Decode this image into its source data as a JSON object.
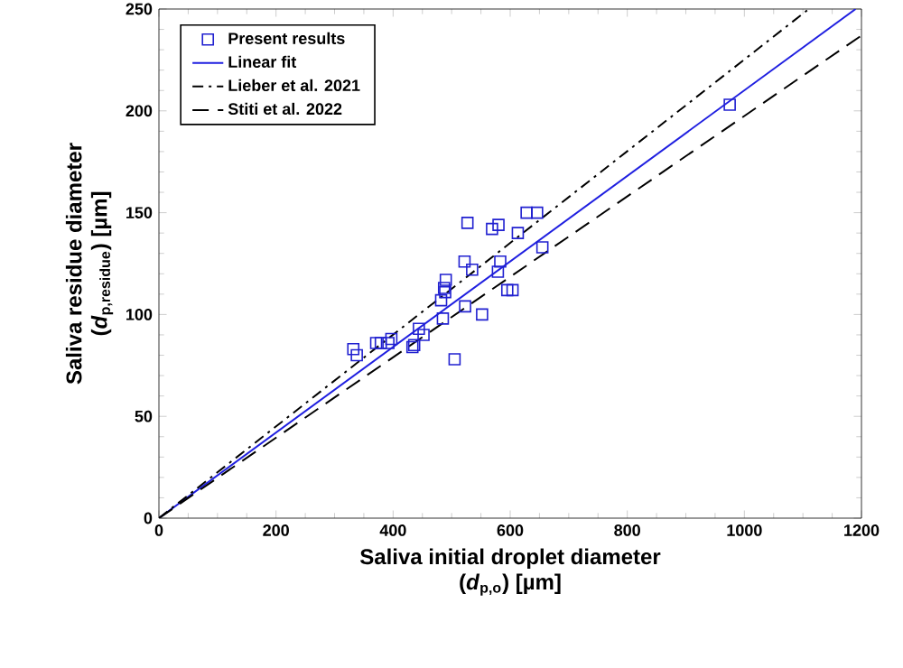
{
  "chart_data": {
    "type": "scatter",
    "xlabel": "Saliva initial droplet diameter\n(*d*$_{p,o}$) [µm]",
    "ylabel": "Saliva residue diameter\n(*d*$_{p,residue}$) [µm]",
    "xlim": [
      0,
      1200
    ],
    "ylim": [
      0,
      250
    ],
    "xticks": [
      0,
      200,
      400,
      600,
      800,
      1000,
      1200
    ],
    "yticks": [
      0,
      50,
      100,
      150,
      200,
      250
    ],
    "grid": false,
    "legend": "top left",
    "series": [
      {
        "name": "Present results",
        "marker": "square",
        "color": "#2020d0",
        "x": [
          332,
          338,
          371,
          379,
          397,
          392,
          436,
          433,
          452,
          444,
          505,
          485,
          482,
          489,
          487,
          490,
          523,
          552,
          522,
          535,
          527,
          569,
          580,
          583,
          579,
          595,
          604,
          613,
          628,
          646,
          655,
          975
        ],
        "values": [
          83,
          80,
          86,
          86,
          88,
          86,
          85,
          84,
          90,
          93,
          78,
          98,
          107,
          111,
          113,
          117,
          104,
          100,
          126,
          122,
          145,
          142,
          144,
          126,
          121,
          112,
          112,
          140,
          150,
          150,
          133,
          203
        ]
      },
      {
        "name": "Linear fit",
        "type": "line",
        "marker": "none",
        "line_style": "solid",
        "color": "#1f1fe0",
        "x": [
          0,
          1190
        ],
        "values": [
          0,
          250
        ]
      },
      {
        "name": "Lieber et al. 2021",
        "type": "line",
        "marker": "none",
        "line_style": "dashdot",
        "color": "#000000",
        "x": [
          0,
          1110
        ],
        "values": [
          0,
          250
        ]
      },
      {
        "name": "Stiti et al. 2022",
        "type": "line",
        "marker": "none",
        "line_style": "dashed",
        "color": "#000000",
        "x": [
          0,
          1200
        ],
        "values": [
          0,
          237
        ]
      }
    ]
  }
}
